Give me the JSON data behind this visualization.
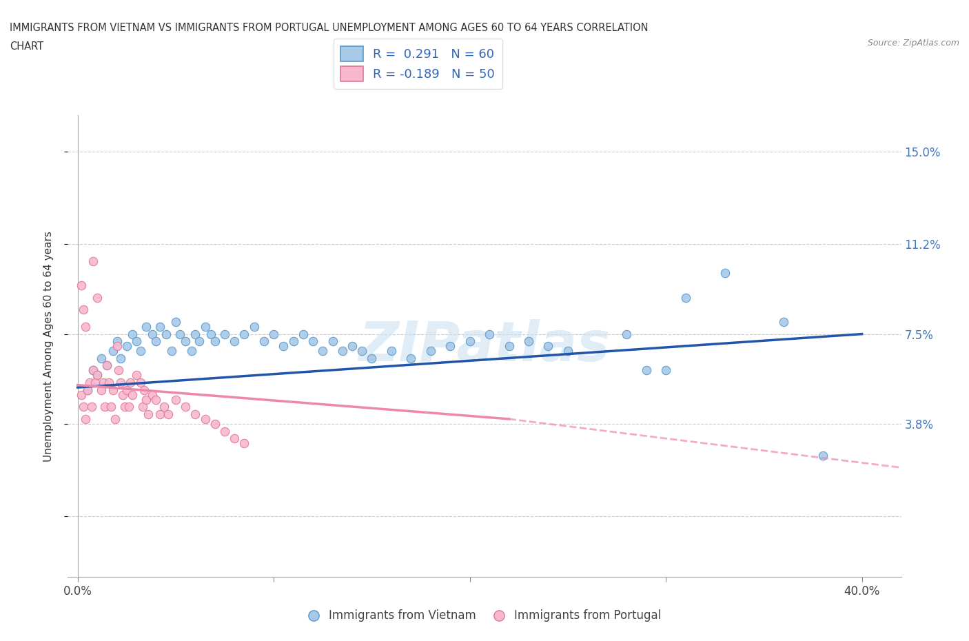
{
  "title_line1": "IMMIGRANTS FROM VIETNAM VS IMMIGRANTS FROM PORTUGAL UNEMPLOYMENT AMONG AGES 60 TO 64 YEARS CORRELATION",
  "title_line2": "CHART",
  "source_text": "Source: ZipAtlas.com",
  "ylabel": "Unemployment Among Ages 60 to 64 years",
  "xlim": [
    -0.005,
    0.42
  ],
  "ylim": [
    -0.025,
    0.165
  ],
  "yticks": [
    0.0,
    0.038,
    0.075,
    0.112,
    0.15
  ],
  "ytick_labels": [
    "",
    "3.8%",
    "7.5%",
    "11.2%",
    "15.0%"
  ],
  "xticks": [
    0.0,
    0.1,
    0.2,
    0.3,
    0.4
  ],
  "xtick_labels": [
    "0.0%",
    "",
    "",
    "",
    "40.0%"
  ],
  "legend_label1": "R =  0.291   N = 60",
  "legend_label2": "R = -0.189   N = 50",
  "vietnam_color": "#a8c8e8",
  "vietnam_edge_color": "#5599cc",
  "portugal_color": "#f8b8cc",
  "portugal_edge_color": "#dd7799",
  "vietnam_line_color": "#2255aa",
  "portugal_line_color": "#ee88aa",
  "watermark": "ZIPatlas",
  "vietnam_scatter": [
    [
      0.005,
      0.052
    ],
    [
      0.008,
      0.06
    ],
    [
      0.01,
      0.058
    ],
    [
      0.012,
      0.065
    ],
    [
      0.015,
      0.062
    ],
    [
      0.018,
      0.068
    ],
    [
      0.02,
      0.072
    ],
    [
      0.022,
      0.065
    ],
    [
      0.025,
      0.07
    ],
    [
      0.028,
      0.075
    ],
    [
      0.03,
      0.072
    ],
    [
      0.032,
      0.068
    ],
    [
      0.035,
      0.078
    ],
    [
      0.038,
      0.075
    ],
    [
      0.04,
      0.072
    ],
    [
      0.042,
      0.078
    ],
    [
      0.045,
      0.075
    ],
    [
      0.048,
      0.068
    ],
    [
      0.05,
      0.08
    ],
    [
      0.052,
      0.075
    ],
    [
      0.055,
      0.072
    ],
    [
      0.058,
      0.068
    ],
    [
      0.06,
      0.075
    ],
    [
      0.062,
      0.072
    ],
    [
      0.065,
      0.078
    ],
    [
      0.068,
      0.075
    ],
    [
      0.07,
      0.072
    ],
    [
      0.075,
      0.075
    ],
    [
      0.08,
      0.072
    ],
    [
      0.085,
      0.075
    ],
    [
      0.09,
      0.078
    ],
    [
      0.095,
      0.072
    ],
    [
      0.1,
      0.075
    ],
    [
      0.105,
      0.07
    ],
    [
      0.11,
      0.072
    ],
    [
      0.115,
      0.075
    ],
    [
      0.12,
      0.072
    ],
    [
      0.125,
      0.068
    ],
    [
      0.13,
      0.072
    ],
    [
      0.135,
      0.068
    ],
    [
      0.14,
      0.07
    ],
    [
      0.145,
      0.068
    ],
    [
      0.15,
      0.065
    ],
    [
      0.16,
      0.068
    ],
    [
      0.17,
      0.065
    ],
    [
      0.18,
      0.068
    ],
    [
      0.19,
      0.07
    ],
    [
      0.2,
      0.072
    ],
    [
      0.21,
      0.075
    ],
    [
      0.22,
      0.07
    ],
    [
      0.23,
      0.072
    ],
    [
      0.24,
      0.07
    ],
    [
      0.25,
      0.068
    ],
    [
      0.28,
      0.075
    ],
    [
      0.29,
      0.06
    ],
    [
      0.3,
      0.06
    ],
    [
      0.31,
      0.09
    ],
    [
      0.33,
      0.1
    ],
    [
      0.36,
      0.08
    ],
    [
      0.38,
      0.025
    ]
  ],
  "portugal_scatter": [
    [
      0.002,
      0.05
    ],
    [
      0.003,
      0.045
    ],
    [
      0.004,
      0.04
    ],
    [
      0.005,
      0.052
    ],
    [
      0.006,
      0.055
    ],
    [
      0.007,
      0.045
    ],
    [
      0.008,
      0.06
    ],
    [
      0.009,
      0.055
    ],
    [
      0.01,
      0.058
    ],
    [
      0.012,
      0.052
    ],
    [
      0.013,
      0.055
    ],
    [
      0.014,
      0.045
    ],
    [
      0.015,
      0.062
    ],
    [
      0.016,
      0.055
    ],
    [
      0.017,
      0.045
    ],
    [
      0.018,
      0.052
    ],
    [
      0.019,
      0.04
    ],
    [
      0.02,
      0.07
    ],
    [
      0.021,
      0.06
    ],
    [
      0.022,
      0.055
    ],
    [
      0.023,
      0.05
    ],
    [
      0.024,
      0.045
    ],
    [
      0.025,
      0.052
    ],
    [
      0.026,
      0.045
    ],
    [
      0.027,
      0.055
    ],
    [
      0.028,
      0.05
    ],
    [
      0.03,
      0.058
    ],
    [
      0.032,
      0.055
    ],
    [
      0.033,
      0.045
    ],
    [
      0.034,
      0.052
    ],
    [
      0.035,
      0.048
    ],
    [
      0.036,
      0.042
    ],
    [
      0.038,
      0.05
    ],
    [
      0.04,
      0.048
    ],
    [
      0.042,
      0.042
    ],
    [
      0.044,
      0.045
    ],
    [
      0.046,
      0.042
    ],
    [
      0.05,
      0.048
    ],
    [
      0.055,
      0.045
    ],
    [
      0.06,
      0.042
    ],
    [
      0.065,
      0.04
    ],
    [
      0.07,
      0.038
    ],
    [
      0.075,
      0.035
    ],
    [
      0.08,
      0.032
    ],
    [
      0.085,
      0.03
    ],
    [
      0.002,
      0.095
    ],
    [
      0.003,
      0.085
    ],
    [
      0.008,
      0.105
    ],
    [
      0.01,
      0.09
    ],
    [
      0.004,
      0.078
    ]
  ],
  "vietnam_trendline": [
    [
      0.0,
      0.053
    ],
    [
      0.4,
      0.075
    ]
  ],
  "portugal_trendline_solid": [
    [
      0.0,
      0.054
    ],
    [
      0.22,
      0.04
    ]
  ],
  "portugal_trendline_dashed": [
    [
      0.22,
      0.04
    ],
    [
      0.42,
      0.02
    ]
  ]
}
